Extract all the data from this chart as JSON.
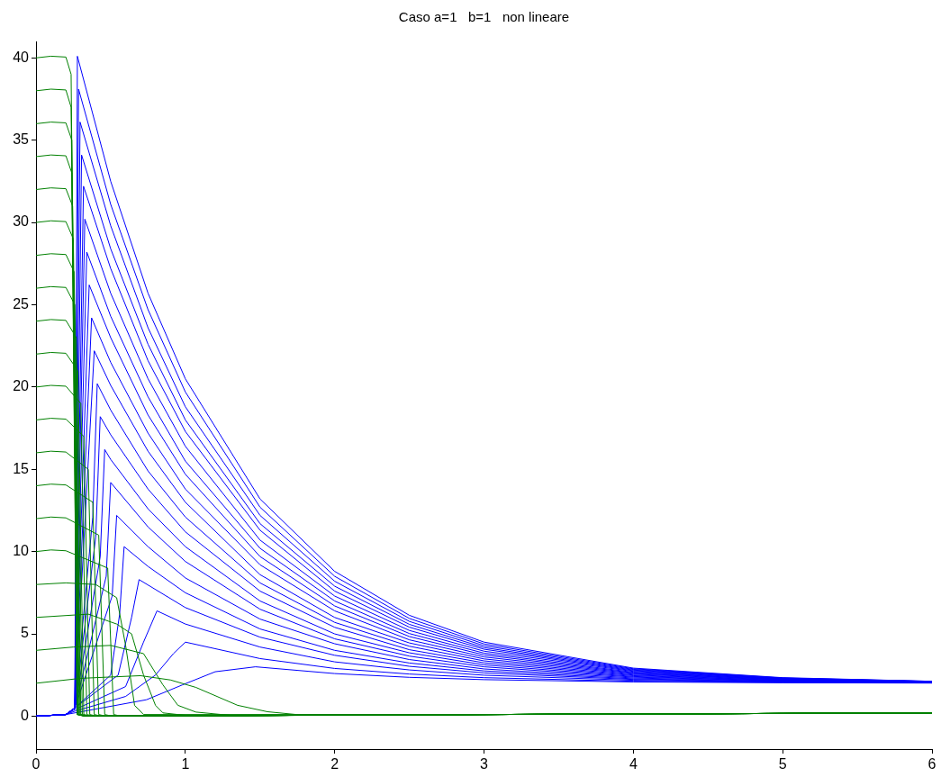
{
  "chart_data": {
    "type": "line",
    "title": "Caso a=1   b=1   non lineare",
    "xlim": [
      0,
      6
    ],
    "xticks": [
      0,
      1,
      2,
      3,
      4,
      5,
      6
    ],
    "ylim": [
      -2,
      41
    ],
    "yticks": [
      0,
      5,
      10,
      15,
      20,
      25,
      30,
      35,
      40
    ],
    "series": [
      {
        "color": "#008000",
        "x": [
          0,
          0.3,
          0.7,
          0.9,
          1.07,
          1.35,
          1.55,
          1.8,
          3,
          6
        ],
        "values": [
          2,
          2.3,
          2.46,
          2.2,
          1.75,
          0.66,
          0.27,
          0.05,
          0.1,
          0.2
        ]
      },
      {
        "color": "#008000",
        "x": [
          0,
          0.25,
          0.5,
          0.72,
          0.85,
          0.95,
          1.07,
          1.3,
          3,
          6
        ],
        "values": [
          4,
          4.2,
          4.3,
          3.8,
          1.9,
          0.66,
          0.25,
          0.05,
          0.1,
          0.2
        ]
      },
      {
        "color": "#008000",
        "x": [
          0,
          0.35,
          0.54,
          0.64,
          0.72,
          0.8,
          0.85,
          1,
          3,
          6
        ],
        "values": [
          6,
          6.2,
          5.6,
          5,
          2.5,
          0.66,
          0.2,
          0.05,
          0.1,
          0.2
        ]
      },
      {
        "color": "#008000",
        "x": [
          0,
          0.2,
          0.4,
          0.54,
          0.6,
          0.66,
          0.72,
          3,
          6
        ],
        "values": [
          8,
          8.1,
          8,
          7.2,
          4.3,
          0.66,
          0.1,
          0.1,
          0.2
        ]
      },
      {
        "color": "#008000",
        "x": [
          0,
          0.1,
          0.2,
          0.48,
          0.52,
          0.57,
          3,
          6
        ],
        "values": [
          10,
          10.1,
          10.05,
          9,
          0.1,
          0,
          0.1,
          0.2
        ]
      },
      {
        "color": "#008000",
        "x": [
          0,
          0.1,
          0.2,
          0.42,
          0.46,
          0.51,
          3,
          6
        ],
        "values": [
          12,
          12.1,
          12.05,
          11,
          0.1,
          0,
          0.1,
          0.2
        ]
      },
      {
        "color": "#008000",
        "x": [
          0,
          0.1,
          0.2,
          0.38,
          0.42,
          0.47,
          3,
          6
        ],
        "values": [
          14,
          14.1,
          14.05,
          13,
          0.1,
          0,
          0.1,
          0.2
        ]
      },
      {
        "color": "#008000",
        "x": [
          0,
          0.1,
          0.2,
          0.35,
          0.39,
          0.44,
          3,
          6
        ],
        "values": [
          16,
          16.1,
          16.05,
          15,
          0.1,
          0,
          0.1,
          0.2
        ]
      },
      {
        "color": "#008000",
        "x": [
          0,
          0.1,
          0.2,
          0.32,
          0.36,
          0.41,
          3,
          6
        ],
        "values": [
          18,
          18.1,
          18.05,
          17,
          0.1,
          0,
          0.1,
          0.2
        ]
      },
      {
        "color": "#008000",
        "x": [
          0,
          0.1,
          0.2,
          0.3,
          0.34,
          0.39,
          3,
          6
        ],
        "values": [
          20,
          20.1,
          20.05,
          19,
          0.1,
          0,
          0.1,
          0.2
        ]
      },
      {
        "color": "#008000",
        "x": [
          0,
          0.1,
          0.2,
          0.28,
          0.32,
          0.37,
          3,
          6
        ],
        "values": [
          22,
          22.1,
          22.05,
          21,
          0.1,
          0,
          0.1,
          0.2
        ]
      },
      {
        "color": "#008000",
        "x": [
          0,
          0.1,
          0.2,
          0.27,
          0.31,
          0.36,
          3,
          6
        ],
        "values": [
          24,
          24.1,
          24.05,
          23,
          0.1,
          0,
          0.1,
          0.2
        ]
      },
      {
        "color": "#008000",
        "x": [
          0,
          0.1,
          0.2,
          0.26,
          0.3,
          0.35,
          3,
          6
        ],
        "values": [
          26,
          26.1,
          26.05,
          25,
          0.1,
          0,
          0.1,
          0.2
        ]
      },
      {
        "color": "#008000",
        "x": [
          0,
          0.1,
          0.2,
          0.255,
          0.295,
          0.345,
          3,
          6
        ],
        "values": [
          28,
          28.1,
          28.05,
          27,
          0.1,
          0,
          0.1,
          0.2
        ]
      },
      {
        "color": "#008000",
        "x": [
          0,
          0.1,
          0.2,
          0.25,
          0.29,
          0.34,
          3,
          6
        ],
        "values": [
          30,
          30.1,
          30.05,
          29,
          0.1,
          0,
          0.1,
          0.2
        ]
      },
      {
        "color": "#008000",
        "x": [
          0,
          0.1,
          0.2,
          0.245,
          0.285,
          0.335,
          3,
          6
        ],
        "values": [
          32,
          32.1,
          32.05,
          31,
          0.1,
          0,
          0.1,
          0.2
        ]
      },
      {
        "color": "#008000",
        "x": [
          0,
          0.1,
          0.2,
          0.24,
          0.28,
          0.33,
          3,
          6
        ],
        "values": [
          34,
          34.1,
          34.05,
          33,
          0.1,
          0,
          0.1,
          0.2
        ]
      },
      {
        "color": "#008000",
        "x": [
          0,
          0.1,
          0.2,
          0.24,
          0.28,
          0.33,
          3,
          6
        ],
        "values": [
          36,
          36.1,
          36.05,
          35,
          0.1,
          0,
          0.1,
          0.2
        ]
      },
      {
        "color": "#008000",
        "x": [
          0,
          0.1,
          0.2,
          0.235,
          0.275,
          0.325,
          3,
          6
        ],
        "values": [
          38,
          38.1,
          38.05,
          37,
          0.1,
          0,
          0.1,
          0.2
        ]
      },
      {
        "color": "#008000",
        "x": [
          0,
          0.1,
          0.2,
          0.235,
          0.275,
          0.325,
          3,
          6
        ],
        "values": [
          40,
          40.1,
          40.05,
          39,
          0.1,
          0,
          0.1,
          0.2
        ]
      },
      {
        "color": "#0000ff",
        "x": [
          0,
          0.2,
          0.26,
          0.74,
          0.98,
          1.2,
          1.47,
          2,
          2.5,
          3,
          4,
          5,
          6
        ],
        "values": [
          0,
          0.1,
          0.2,
          1.0,
          1.9,
          2.7,
          3.0,
          2.59,
          2.36,
          2.22,
          2.08,
          2.03,
          2.01
        ]
      },
      {
        "color": "#0000ff",
        "x": [
          0,
          0.2,
          0.26,
          0.6,
          0.8,
          0.92,
          1.0,
          1.5,
          2,
          2.5,
          3,
          4,
          5,
          6
        ],
        "values": [
          0,
          0.1,
          0.3,
          1.2,
          2.5,
          3.8,
          4.5,
          3.5,
          2.9,
          2.56,
          2.34,
          2.12,
          2.05,
          2.02
        ]
      },
      {
        "color": "#0000ff",
        "x": [
          0,
          0.2,
          0.26,
          0.6,
          0.72,
          0.81,
          1,
          1.5,
          2,
          2.5,
          3,
          4,
          5,
          6
        ],
        "values": [
          0,
          0.1,
          0.4,
          1.8,
          4.5,
          6.4,
          5.6,
          4.2,
          3.3,
          2.81,
          2.49,
          2.18,
          2.07,
          2.02
        ]
      },
      {
        "color": "#0000ff",
        "x": [
          0,
          0.2,
          0.26,
          0.55,
          0.64,
          0.69,
          1,
          1.5,
          2,
          2.5,
          3,
          4,
          5,
          6
        ],
        "values": [
          0,
          0.1,
          0.5,
          2.5,
          6,
          8.3,
          6.6,
          4.8,
          3.7,
          3.03,
          2.63,
          2.23,
          2.08,
          2.03
        ]
      },
      {
        "color": "#0000ff",
        "x": [
          0,
          0.2,
          0.26,
          0.5,
          0.56,
          0.59,
          0.75,
          1,
          1.5,
          2,
          2.5,
          3,
          4,
          5,
          6
        ],
        "values": [
          0,
          0.1,
          0.5,
          2.5,
          6.2,
          10.3,
          9.1,
          7.5,
          5.3,
          4.0,
          3.23,
          2.75,
          2.27,
          2.1,
          2.04
        ]
      },
      {
        "color": "#0000ff",
        "x": [
          0,
          0.2,
          0.26,
          0.51,
          0.54,
          0.75,
          1,
          1.5,
          2,
          2.5,
          3,
          4,
          5,
          6
        ],
        "values": [
          0,
          0.1,
          0.5,
          7.3,
          12.2,
          10.3,
          8.4,
          5.9,
          4.4,
          3.44,
          2.87,
          2.32,
          2.12,
          2.04
        ]
      },
      {
        "color": "#0000ff",
        "x": [
          0,
          0.2,
          0.26,
          0.47,
          0.5,
          0.75,
          1,
          1.5,
          2,
          2.5,
          3,
          4,
          5,
          6
        ],
        "values": [
          0,
          0.1,
          0.5,
          8.5,
          14.2,
          11.5,
          9.4,
          6.5,
          4.7,
          3.65,
          3.0,
          2.37,
          2.14,
          2.05
        ]
      },
      {
        "color": "#0000ff",
        "x": [
          0,
          0.2,
          0.26,
          0.43,
          0.46,
          0.5,
          0.75,
          1,
          1.5,
          2,
          2.5,
          3,
          4,
          5,
          6
        ],
        "values": [
          0,
          0.1,
          0.5,
          9.7,
          16.2,
          15.6,
          12.6,
          10.3,
          7.0,
          5.0,
          3.85,
          3.12,
          2.41,
          2.15,
          2.06
        ]
      },
      {
        "color": "#0000ff",
        "x": [
          0,
          0.2,
          0.26,
          0.4,
          0.43,
          0.5,
          0.75,
          1,
          1.5,
          2,
          2.5,
          3,
          4,
          5,
          6
        ],
        "values": [
          0,
          0.1,
          0.5,
          10.9,
          18.2,
          17.1,
          13.8,
          11.2,
          7.6,
          5.4,
          4.04,
          3.24,
          2.46,
          2.17,
          2.06
        ]
      },
      {
        "color": "#0000ff",
        "x": [
          0,
          0.2,
          0.26,
          0.38,
          0.41,
          0.5,
          0.75,
          1,
          1.5,
          2,
          2.5,
          3,
          4,
          5,
          6
        ],
        "values": [
          0,
          0.1,
          0.5,
          12.1,
          20.2,
          18.6,
          14.9,
          12.1,
          8.1,
          5.7,
          4.25,
          3.36,
          2.5,
          2.18,
          2.07
        ]
      },
      {
        "color": "#0000ff",
        "x": [
          0,
          0.2,
          0.26,
          0.39,
          0.5,
          0.75,
          1,
          1.5,
          2,
          2.5,
          3,
          4,
          5,
          6
        ],
        "values": [
          0,
          0.1,
          0.5,
          22.2,
          20.1,
          16.1,
          13.0,
          8.6,
          6.0,
          4.45,
          3.48,
          2.55,
          2.2,
          2.07
        ]
      },
      {
        "color": "#0000ff",
        "x": [
          0,
          0.2,
          0.26,
          0.372,
          0.5,
          0.75,
          1,
          1.5,
          2,
          2.5,
          3,
          4,
          5,
          6
        ],
        "values": [
          0,
          0.1,
          0.5,
          24.2,
          21.5,
          17.2,
          13.8,
          9.2,
          6.4,
          4.64,
          3.6,
          2.59,
          2.22,
          2.08
        ]
      },
      {
        "color": "#0000ff",
        "x": [
          0,
          0.2,
          0.26,
          0.356,
          0.5,
          0.75,
          1,
          1.5,
          2,
          2.5,
          3,
          4,
          5,
          6
        ],
        "values": [
          0,
          0.1,
          0.5,
          26.2,
          23.0,
          18.3,
          14.7,
          9.7,
          6.7,
          4.84,
          3.72,
          2.63,
          2.23,
          2.09
        ]
      },
      {
        "color": "#0000ff",
        "x": [
          0,
          0.2,
          0.26,
          0.34,
          0.5,
          0.75,
          1,
          1.5,
          2,
          2.5,
          3,
          4,
          5,
          6
        ],
        "values": [
          0,
          0.1,
          0.5,
          28.2,
          24.3,
          19.4,
          15.5,
          10.2,
          7.0,
          5.02,
          3.83,
          2.67,
          2.25,
          2.09
        ]
      },
      {
        "color": "#0000ff",
        "x": [
          0,
          0.2,
          0.26,
          0.327,
          0.5,
          0.75,
          1,
          1.5,
          2,
          2.5,
          3,
          4,
          5,
          6
        ],
        "values": [
          0,
          0.1,
          0.5,
          30.2,
          25.7,
          20.5,
          16.4,
          10.7,
          7.3,
          5.21,
          3.95,
          2.72,
          2.26,
          2.1
        ]
      },
      {
        "color": "#0000ff",
        "x": [
          0,
          0.2,
          0.26,
          0.318,
          0.5,
          0.75,
          1,
          1.5,
          2,
          2.5,
          3,
          4,
          5,
          6
        ],
        "values": [
          0,
          0.1,
          0.5,
          32.2,
          27.2,
          21.6,
          17.3,
          11.3,
          7.6,
          5.41,
          4.07,
          2.76,
          2.28,
          2.1
        ]
      },
      {
        "color": "#0000ff",
        "x": [
          0,
          0.2,
          0.26,
          0.305,
          0.5,
          0.75,
          1,
          1.5,
          2,
          2.5,
          3,
          4,
          5,
          6
        ],
        "values": [
          0,
          0.1,
          0.5,
          34.1,
          28.4,
          22.6,
          18.0,
          11.7,
          7.9,
          5.58,
          4.17,
          2.8,
          2.29,
          2.11
        ]
      },
      {
        "color": "#0000ff",
        "x": [
          0,
          0.2,
          0.26,
          0.295,
          0.5,
          0.75,
          1,
          1.5,
          2,
          2.5,
          3,
          4,
          5,
          6
        ],
        "values": [
          0,
          0.1,
          0.5,
          36.1,
          29.8,
          23.6,
          18.8,
          12.2,
          8.2,
          5.76,
          4.28,
          2.84,
          2.31,
          2.11
        ]
      },
      {
        "color": "#0000ff",
        "x": [
          0,
          0.2,
          0.26,
          0.285,
          0.5,
          0.75,
          1,
          1.5,
          2,
          2.5,
          3,
          4,
          5,
          6
        ],
        "values": [
          0,
          0.1,
          0.5,
          38.1,
          31.1,
          24.7,
          19.7,
          12.7,
          8.5,
          5.94,
          4.39,
          2.88,
          2.32,
          2.12
        ]
      },
      {
        "color": "#0000ff",
        "x": [
          0,
          0.2,
          0.26,
          0.277,
          0.5,
          0.75,
          1,
          1.5,
          2,
          2.5,
          3,
          4,
          5,
          6
        ],
        "values": [
          0,
          0.1,
          0.5,
          40.1,
          32.5,
          25.7,
          20.5,
          13.2,
          8.8,
          6.13,
          4.5,
          2.92,
          2.34,
          2.12
        ]
      }
    ]
  }
}
